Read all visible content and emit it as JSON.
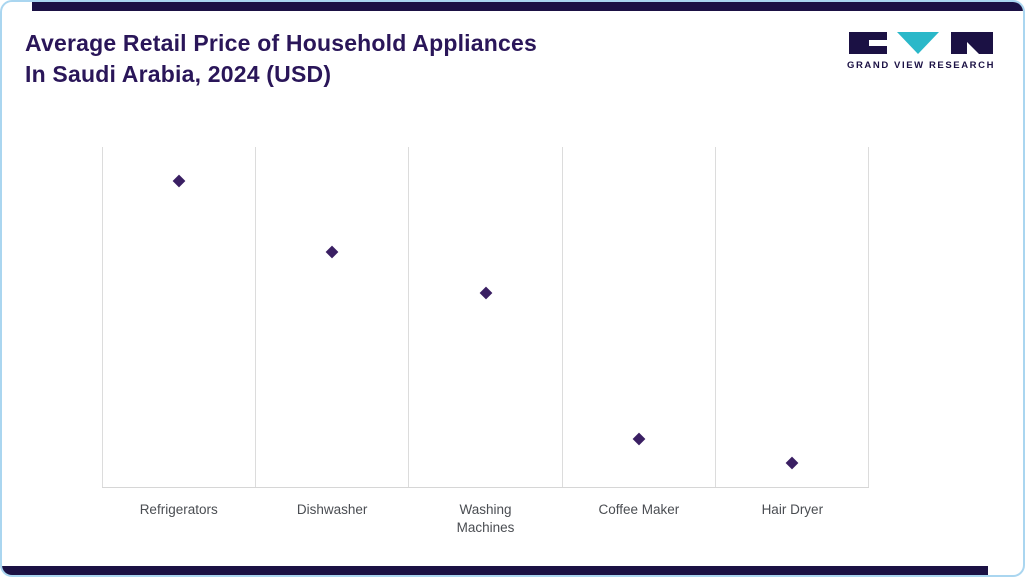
{
  "header": {
    "title_line1": "Average Retail Price of Household Appliances",
    "title_line2": "In Saudi Arabia, 2024 (USD)",
    "logo_text": "GRAND VIEW RESEARCH"
  },
  "chart_data": {
    "type": "scatter",
    "title": "Average Retail Price of Household Appliances In Saudi Arabia, 2024 (USD)",
    "categories": [
      "Refrigerators",
      "Dishwasher",
      "Washing\nMachines",
      "Coffee Maker",
      "Hair Dryer"
    ],
    "values": [
      900,
      690,
      570,
      140,
      70
    ],
    "xlabel": "",
    "ylabel": "",
    "ylim": [
      0,
      1000
    ],
    "grid": "vertical-only",
    "legend": "none",
    "marker": "diamond",
    "marker_color": "#3a1f63"
  },
  "colors": {
    "border": "#aad6f0",
    "accent_bar": "#1b1144",
    "title": "#2a1659",
    "logo_teal": "#2ab8c9",
    "grid": "#dcdcdc",
    "label": "#4a4d52"
  }
}
